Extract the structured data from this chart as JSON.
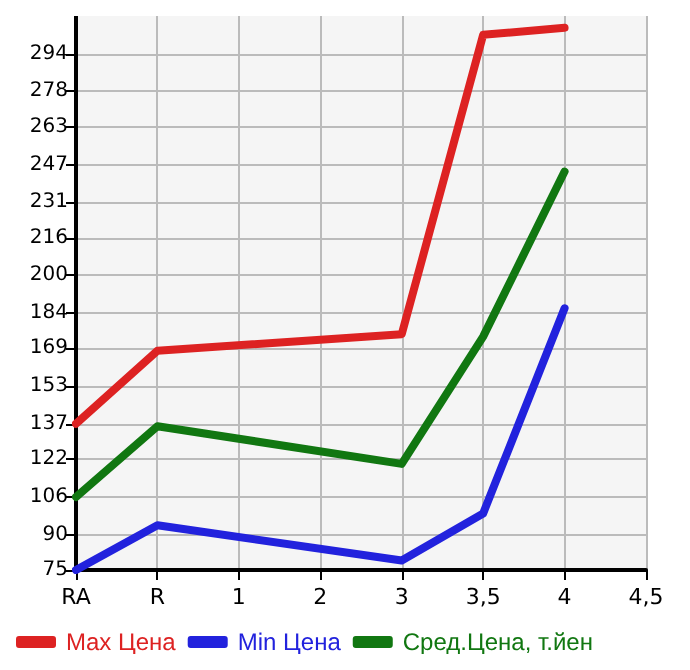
{
  "chart_data": {
    "type": "line",
    "categories": [
      "RA",
      "R",
      "1",
      "2",
      "3",
      "3,5",
      "4",
      "4,5"
    ],
    "series": [
      {
        "name": "Max Цена",
        "color": "#dd2222",
        "values": [
          137,
          168,
          null,
          null,
          175,
          302,
          305,
          null
        ]
      },
      {
        "name": "Min Цена",
        "color": "#2222dd",
        "values": [
          75,
          94,
          null,
          null,
          79,
          99,
          186,
          null
        ]
      },
      {
        "name": "Сред.Цена, т.йен",
        "color": "#117711",
        "values": [
          106,
          136,
          null,
          null,
          120,
          174,
          244,
          null
        ]
      }
    ],
    "ylim": [
      75,
      310
    ],
    "yticks": [
      75,
      90,
      106,
      122,
      137,
      153,
      169,
      184,
      200,
      216,
      231,
      247,
      263,
      278,
      294
    ],
    "grid": true,
    "legend": "bottom",
    "marker": "none",
    "line_style": "solid"
  }
}
